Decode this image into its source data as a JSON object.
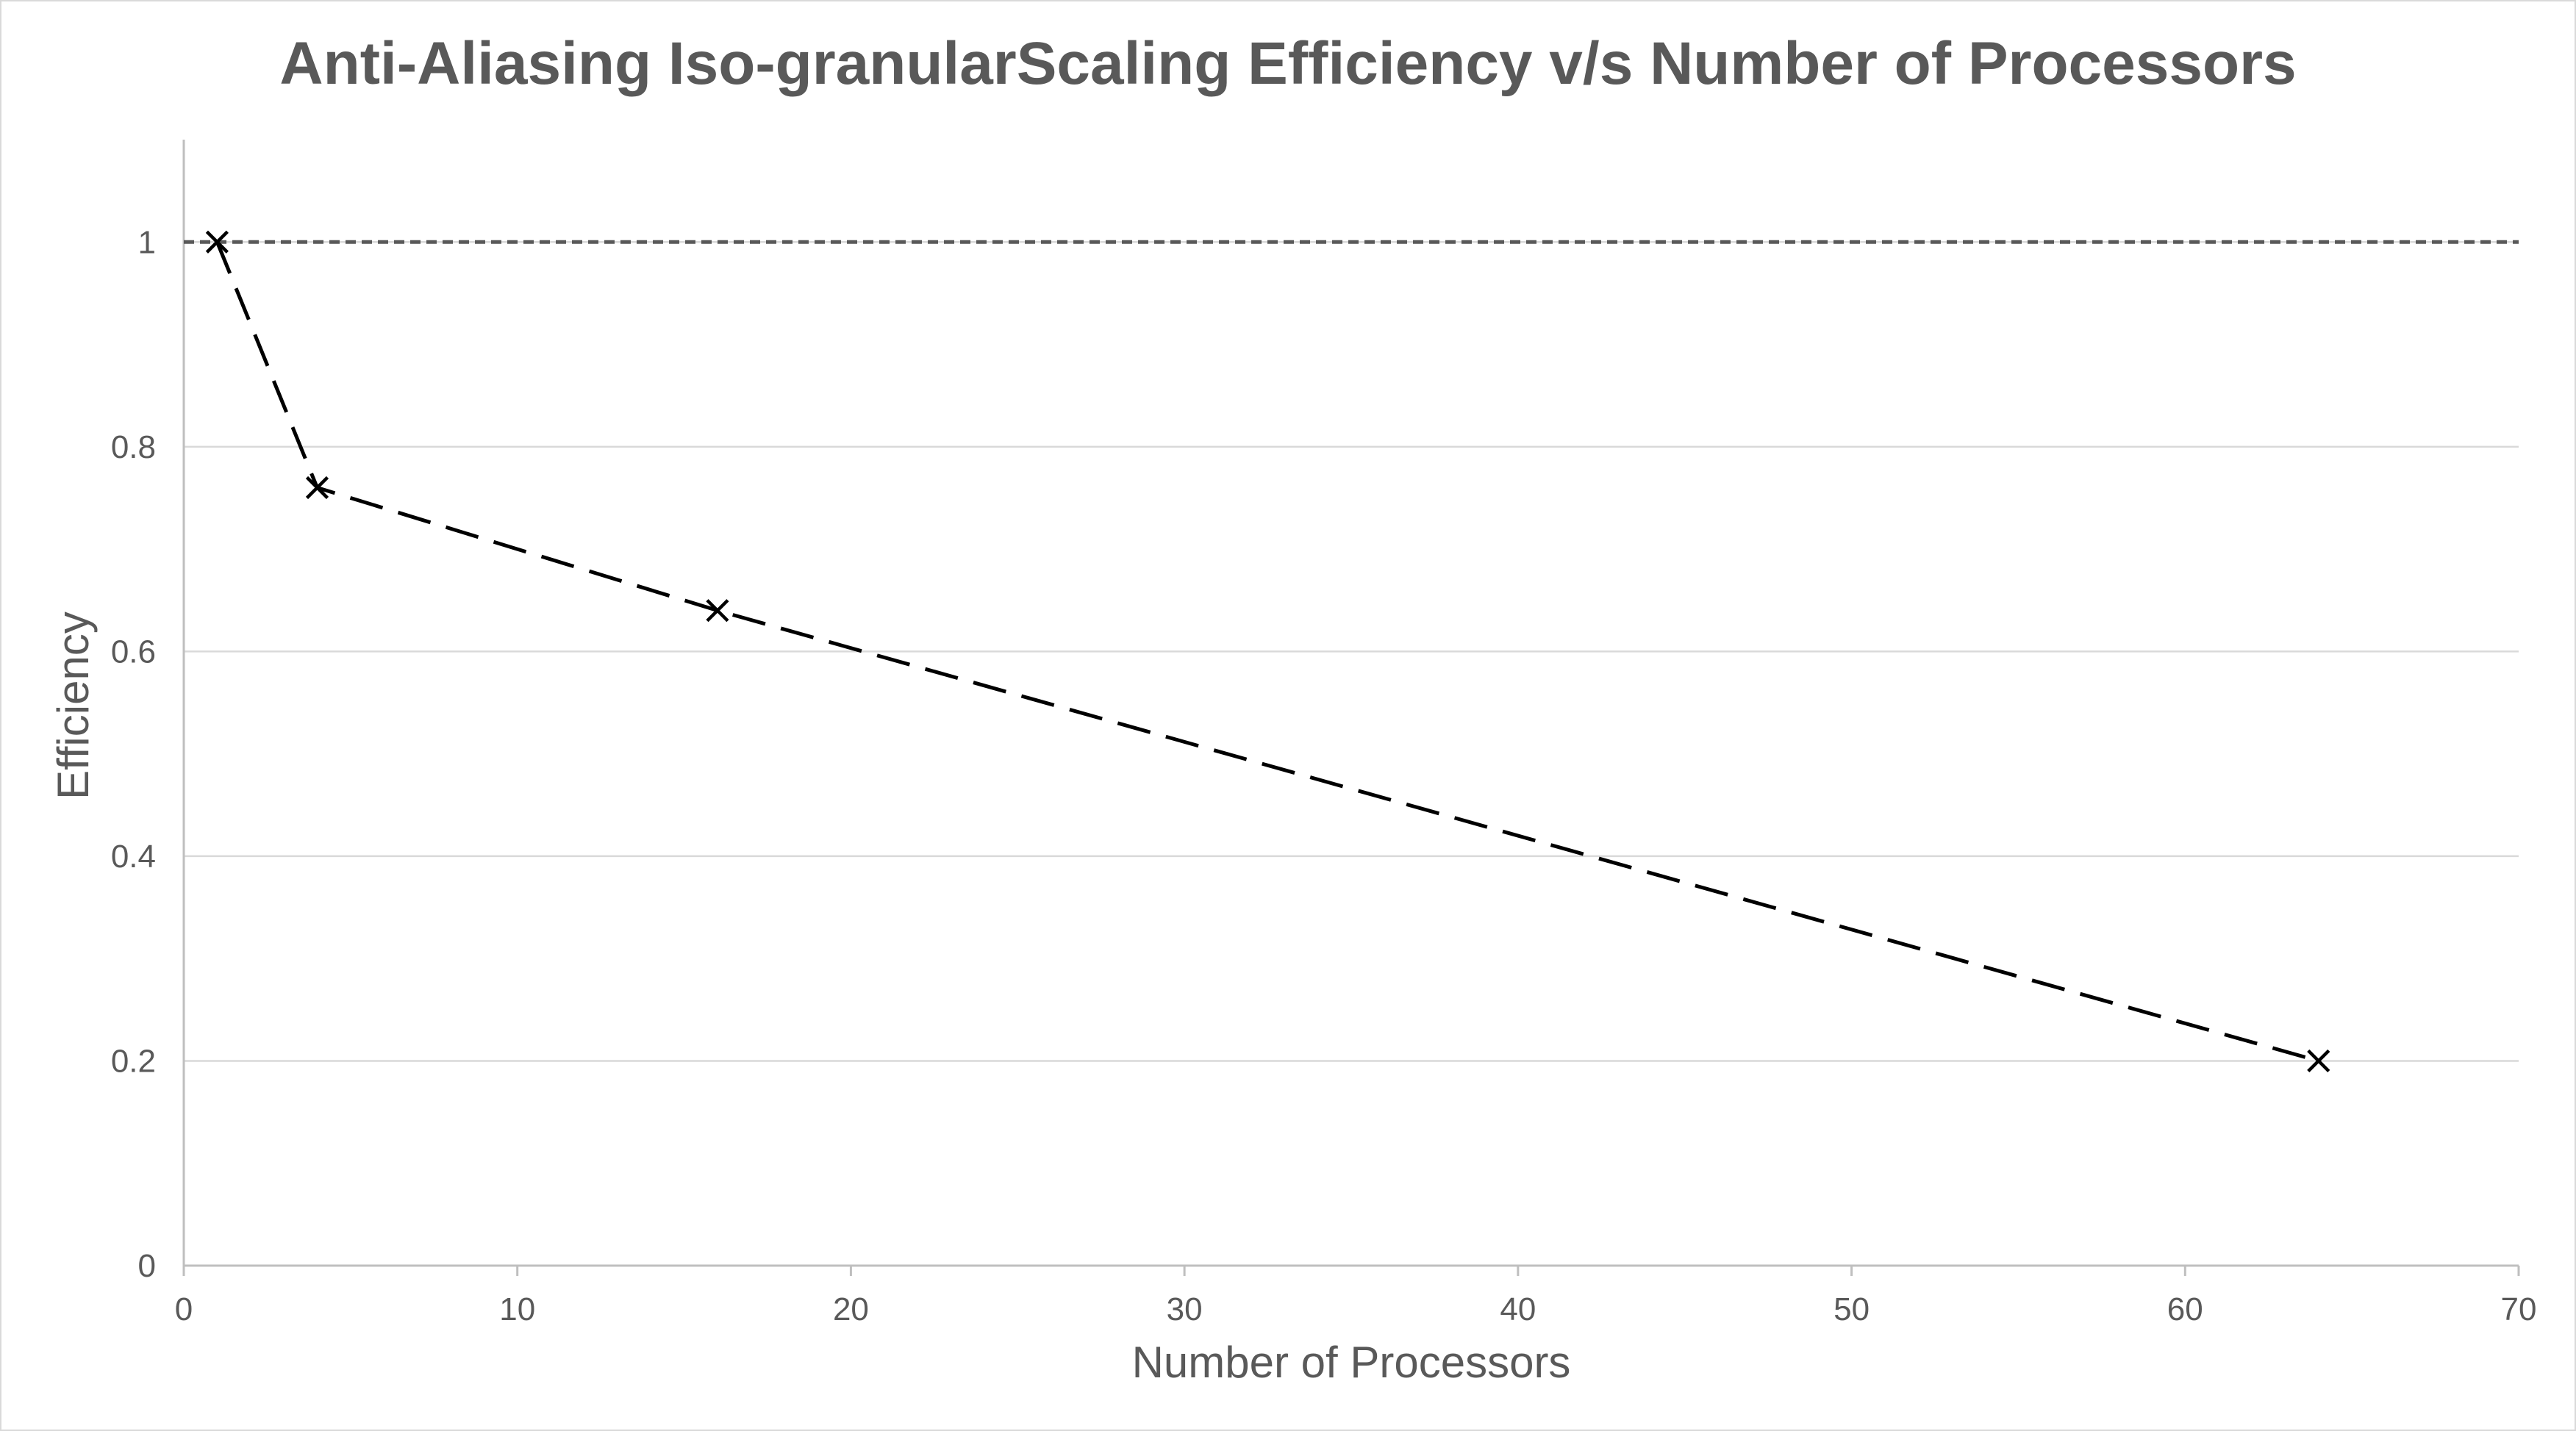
{
  "chart_data": {
    "type": "line",
    "title": "Anti-Aliasing Iso-granularScaling Efficiency v/s Number of Processors",
    "xlabel": "Number of Processors",
    "ylabel": "Efficiency",
    "xlim": [
      0,
      70
    ],
    "ylim": [
      0,
      1.1
    ],
    "xticks": [
      0,
      10,
      20,
      30,
      40,
      50,
      60,
      70
    ],
    "xtick_labels": [
      "0",
      "10",
      "20",
      "30",
      "40",
      "50",
      "60",
      "70"
    ],
    "yticks": [
      0,
      0.2,
      0.4,
      0.6,
      0.8,
      1
    ],
    "ytick_labels": [
      "0",
      "0.2",
      "0.4",
      "0.6",
      "0.8",
      "1"
    ],
    "grid": "horizontal",
    "legend": "none",
    "series": [
      {
        "type": "line",
        "style": "long-dash",
        "marker": "x",
        "color": "#000000",
        "x": [
          1,
          4,
          16,
          64
        ],
        "y": [
          1.0,
          0.76,
          0.64,
          0.2
        ]
      },
      {
        "type": "reference-line",
        "style": "short-dash",
        "color": "#595959",
        "x": [
          0,
          70
        ],
        "y": [
          1,
          1
        ]
      }
    ]
  },
  "colors": {
    "text": "#595959",
    "gridline": "#d9d9d9",
    "axis_line": "#bfbfbf",
    "series": "#000000",
    "reference": "#595959"
  }
}
